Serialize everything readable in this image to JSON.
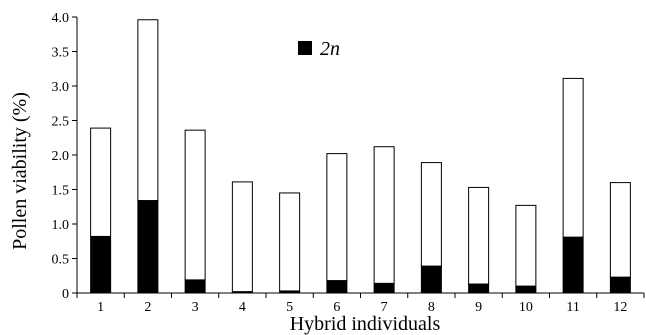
{
  "chart_data": {
    "type": "bar",
    "stacked": true,
    "categories": [
      "1",
      "2",
      "3",
      "4",
      "5",
      "6",
      "7",
      "8",
      "9",
      "10",
      "11",
      "12"
    ],
    "series": [
      {
        "name": "2n",
        "color": "#000000",
        "values": [
          0.82,
          1.34,
          0.19,
          0.02,
          0.03,
          0.18,
          0.14,
          0.39,
          0.13,
          0.1,
          0.81,
          0.23
        ]
      },
      {
        "name": "",
        "color": "#ffffff",
        "values": [
          1.57,
          2.62,
          2.17,
          1.59,
          1.42,
          1.84,
          1.98,
          1.5,
          1.4,
          1.17,
          2.3,
          1.37
        ]
      }
    ],
    "totals": [
      2.39,
      3.96,
      2.36,
      1.61,
      1.45,
      2.02,
      2.12,
      1.89,
      1.53,
      1.27,
      3.11,
      1.6
    ],
    "xlabel": "Hybrid individuals",
    "ylabel": "Pollen viability (%)",
    "ylim": [
      0,
      4.0
    ],
    "yticks": [
      "0",
      "0.5",
      "1.0",
      "1.5",
      "2.0",
      "2.5",
      "3.0",
      "3.5",
      "4.0"
    ],
    "grid": false,
    "legend": {
      "position": "top-center",
      "entries": [
        "2n"
      ]
    }
  }
}
